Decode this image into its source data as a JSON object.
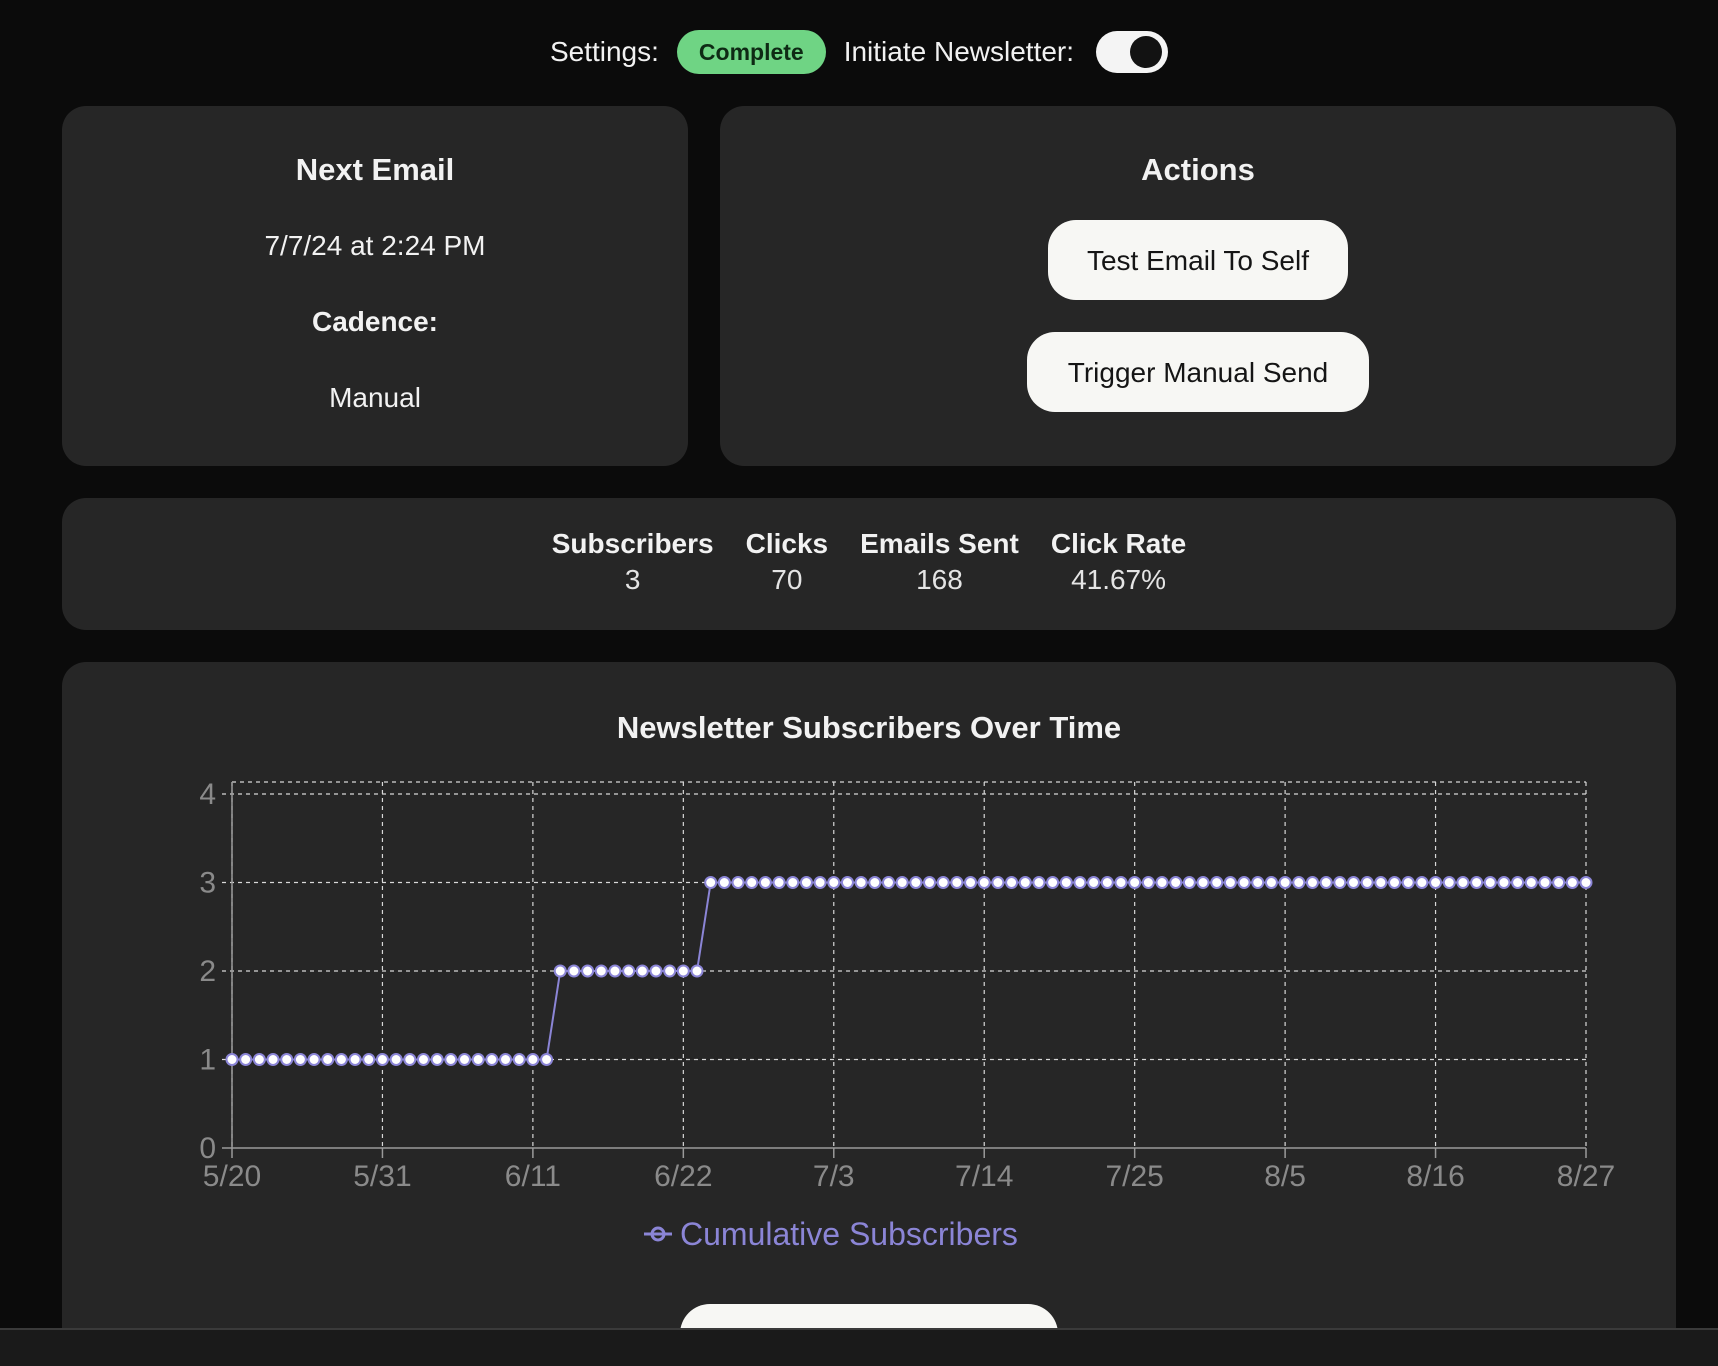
{
  "topbar": {
    "settings_label": "Settings:",
    "settings_status": "Complete",
    "initiate_label": "Initiate Newsletter:",
    "toggle_on": true
  },
  "next_email": {
    "title": "Next Email",
    "datetime": "7/7/24 at 2:24 PM",
    "cadence_label": "Cadence:",
    "cadence_value": "Manual"
  },
  "actions": {
    "title": "Actions",
    "test_email_label": "Test Email To Self",
    "manual_send_label": "Trigger Manual Send"
  },
  "stats": [
    {
      "label": "Subscribers",
      "value": "3"
    },
    {
      "label": "Clicks",
      "value": "70"
    },
    {
      "label": "Emails Sent",
      "value": "168"
    },
    {
      "label": "Click Rate",
      "value": "41.67%"
    }
  ],
  "colors": {
    "accent": "#8b85d6",
    "status_green": "#6fd484",
    "card_bg": "#262626"
  },
  "chart_data": {
    "type": "line",
    "title": "Newsletter Subscribers Over Time",
    "xlabel": "",
    "ylabel": "",
    "x_ticks": [
      "5/20",
      "5/31",
      "6/11",
      "6/22",
      "7/3",
      "7/14",
      "7/25",
      "8/5",
      "8/16",
      "8/27"
    ],
    "y_ticks": [
      "0",
      "1",
      "2",
      "3",
      "4"
    ],
    "ylim": [
      0,
      4
    ],
    "xlim": [
      "2024-05-20",
      "2024-08-27"
    ],
    "grid": true,
    "legend": "bottom",
    "series": [
      {
        "name": "Cumulative Subscribers",
        "color": "#8b85d6",
        "segments": [
          {
            "from": "2024-05-20",
            "to": "2024-06-12",
            "value": 1
          },
          {
            "from": "2024-06-13",
            "to": "2024-06-23",
            "value": 2
          },
          {
            "from": "2024-06-24",
            "to": "2024-08-27",
            "value": 3
          }
        ]
      }
    ]
  }
}
